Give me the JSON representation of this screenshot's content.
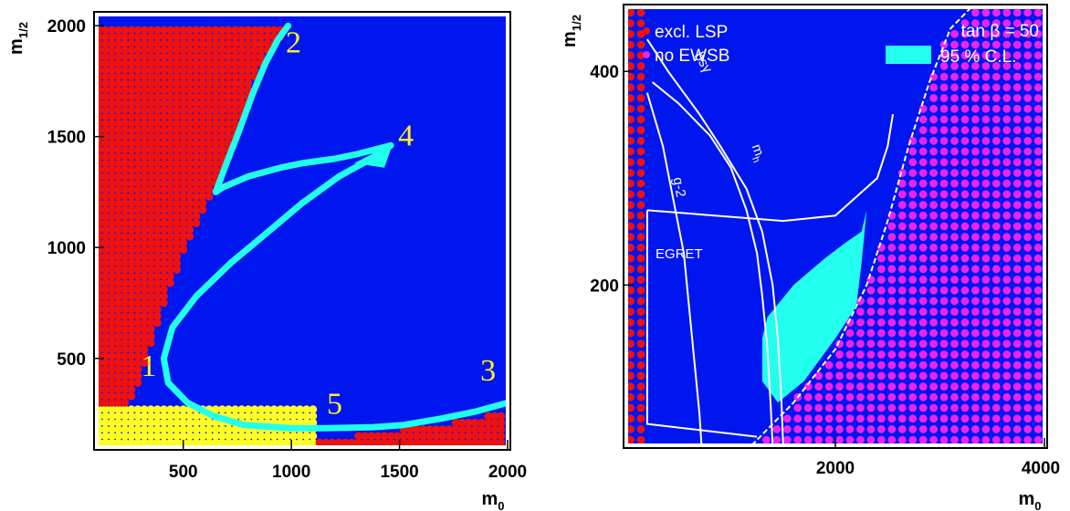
{
  "colors": {
    "allowed": "#0016ee",
    "excluded_lsp": "#ee1111",
    "no_ewsb": "#ee22ee",
    "yellow_points": "#ffff22",
    "cl95": "#22ffee",
    "contour": "#ffffff",
    "region_number": "#ffef2a"
  },
  "chart_data": [
    {
      "type": "scatter",
      "panel": "left",
      "xlabel": "m",
      "xlabel_sub": "0",
      "ylabel": "m",
      "ylabel_sub": "1/2",
      "xlim": [
        100,
        2000
      ],
      "ylim": [
        100,
        2050
      ],
      "xticks": [
        500,
        1000,
        1500,
        2000
      ],
      "yticks": [
        500,
        1000,
        1500,
        2000
      ],
      "xtick_labels": [
        "500",
        "1000",
        "1500",
        "2000"
      ],
      "ytick_labels": [
        "500",
        "1000",
        "1500",
        "2000"
      ],
      "region_labels": [
        {
          "text": "1",
          "x": 340,
          "y": 420
        },
        {
          "text": "2",
          "x": 1010,
          "y": 1880
        },
        {
          "text": "3",
          "x": 1910,
          "y": 400
        },
        {
          "text": "4",
          "x": 1530,
          "y": 1460
        },
        {
          "text": "5",
          "x": 1200,
          "y": 250
        }
      ],
      "excluded_boundary": [
        [
          100,
          2000
        ],
        [
          985,
          2000
        ],
        [
          960,
          1960
        ],
        [
          900,
          1890
        ],
        [
          860,
          1820
        ],
        [
          820,
          1720
        ],
        [
          790,
          1610
        ],
        [
          740,
          1490
        ],
        [
          700,
          1360
        ],
        [
          640,
          1260
        ],
        [
          600,
          1160
        ],
        [
          520,
          1010
        ],
        [
          460,
          870
        ],
        [
          410,
          730
        ],
        [
          360,
          590
        ],
        [
          320,
          460
        ],
        [
          280,
          330
        ],
        [
          250,
          290
        ],
        [
          100,
          290
        ]
      ],
      "bottom_excluded_boundary": [
        [
          1120,
          100
        ],
        [
          1120,
          150
        ],
        [
          1300,
          150
        ],
        [
          1430,
          170
        ],
        [
          1600,
          190
        ],
        [
          1750,
          210
        ],
        [
          1900,
          240
        ],
        [
          2000,
          260
        ],
        [
          2000,
          100
        ]
      ],
      "yellow_region": {
        "x_max": 1100,
        "y_max": 280
      },
      "cl95_band": [
        [
          985,
          2000
        ],
        [
          940,
          1940
        ],
        [
          880,
          1830
        ],
        [
          820,
          1690
        ],
        [
          760,
          1530
        ],
        [
          700,
          1380
        ],
        [
          650,
          1250
        ],
        [
          680,
          1270
        ],
        [
          800,
          1320
        ],
        [
          950,
          1360
        ],
        [
          1050,
          1380
        ],
        [
          1200,
          1400
        ],
        [
          1300,
          1420
        ],
        [
          1460,
          1460
        ],
        [
          1350,
          1390
        ],
        [
          1220,
          1320
        ],
        [
          1050,
          1200
        ],
        [
          880,
          1060
        ],
        [
          720,
          930
        ],
        [
          560,
          780
        ],
        [
          450,
          640
        ],
        [
          410,
          500
        ],
        [
          430,
          390
        ],
        [
          520,
          300
        ],
        [
          640,
          240
        ],
        [
          780,
          200
        ],
        [
          1000,
          185
        ],
        [
          1150,
          185
        ],
        [
          1380,
          190
        ],
        [
          1520,
          200
        ],
        [
          1700,
          230
        ],
        [
          1850,
          260
        ],
        [
          2000,
          300
        ]
      ]
    },
    {
      "type": "scatter",
      "panel": "right",
      "xlabel": "m",
      "xlabel_sub": "0",
      "ylabel": "m",
      "ylabel_sub": "1/2",
      "xlim": [
        0,
        4000
      ],
      "ylim": [
        50,
        460
      ],
      "xticks": [
        2000,
        4000
      ],
      "yticks": [
        200,
        400
      ],
      "xtick_labels": [
        "2000",
        "4000"
      ],
      "ytick_labels": [
        "200",
        "400"
      ],
      "legend": [
        {
          "label": "excl. LSP",
          "marker": "dot",
          "color": "#ee1111"
        },
        {
          "label": "no EWSB",
          "marker": "dot",
          "color": "#ee22ee"
        },
        {
          "label": "95 % C.L.",
          "marker": "box",
          "color": "#22ffee"
        }
      ],
      "annotation": "tan β = 50",
      "contour_labels": [
        "bsγ",
        "g-2",
        "m",
        "EGRET"
      ],
      "contour_label_subs": [
        "",
        "",
        "h",
        ""
      ],
      "lsp_excluded_x_max": 200,
      "no_ewsb_boundary": [
        [
          1200,
          50
        ],
        [
          1600,
          90
        ],
        [
          2000,
          140
        ],
        [
          2300,
          200
        ],
        [
          2500,
          260
        ],
        [
          2700,
          330
        ],
        [
          2900,
          390
        ],
        [
          3100,
          440
        ],
        [
          3300,
          460
        ],
        [
          4000,
          460
        ],
        [
          4000,
          50
        ]
      ],
      "cl95_region": [
        [
          1350,
          170
        ],
        [
          1600,
          200
        ],
        [
          1900,
          225
        ],
        [
          2100,
          240
        ],
        [
          2250,
          250
        ],
        [
          2300,
          270
        ],
        [
          2250,
          220
        ],
        [
          2200,
          180
        ],
        [
          2000,
          150
        ],
        [
          1700,
          110
        ],
        [
          1450,
          90
        ],
        [
          1300,
          110
        ],
        [
          1300,
          150
        ]
      ],
      "contours": {
        "bsg": [
          [
            200,
            430
          ],
          [
            400,
            400
          ],
          [
            700,
            360
          ],
          [
            900,
            330
          ],
          [
            1150,
            290
          ],
          [
            1300,
            250
          ],
          [
            1400,
            200
          ],
          [
            1450,
            150
          ],
          [
            1480,
            100
          ],
          [
            1500,
            50
          ]
        ],
        "g2": [
          [
            200,
            380
          ],
          [
            350,
            330
          ],
          [
            450,
            280
          ],
          [
            550,
            230
          ],
          [
            600,
            180
          ],
          [
            650,
            130
          ],
          [
            700,
            80
          ],
          [
            720,
            50
          ]
        ],
        "mh": [
          [
            250,
            390
          ],
          [
            500,
            370
          ],
          [
            800,
            340
          ],
          [
            1000,
            310
          ],
          [
            1150,
            270
          ],
          [
            1250,
            230
          ],
          [
            1300,
            190
          ],
          [
            1350,
            140
          ],
          [
            1380,
            90
          ],
          [
            1400,
            50
          ]
        ],
        "egret": [
          [
            200,
            270
          ],
          [
            1500,
            260
          ],
          [
            2000,
            265
          ],
          [
            2400,
            300
          ],
          [
            2500,
            330
          ],
          [
            2550,
            360
          ]
        ]
      }
    }
  ]
}
